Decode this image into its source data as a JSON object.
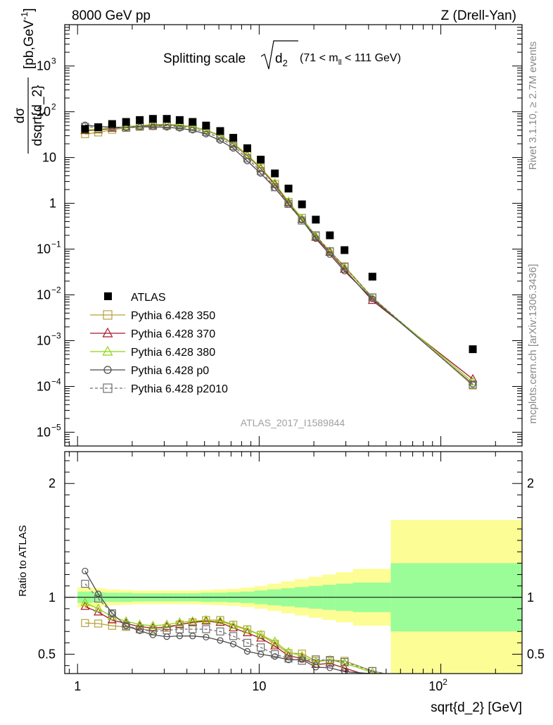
{
  "header": {
    "left": "8000 GeV pp",
    "right": "Z (Drell-Yan)"
  },
  "side_labels": {
    "rivet": "Rivet 3.1.10, ≥ 2.7M events",
    "mcplots": "mcplots.cern.ch [arXiv:1306.3436]"
  },
  "watermark": "ATLAS_2017_I1589844",
  "chart_data": {
    "type": "scatter",
    "title": {
      "prefix": "Splitting scale",
      "var": "d",
      "var_sub": "2",
      "cut_open": "(71 < m",
      "cut_sub": "ll",
      "cut_close": " < 111 GeV)"
    },
    "xlabel": "sqrt{d_2} [GeV]",
    "ylabel": {
      "numer": "dσ",
      "denom": "dsqrt{d_2}",
      "unit_open": "[pb,GeV",
      "unit_exp": "-1",
      "unit_close": "]"
    },
    "ratio_ylabel": "Ratio to ATLAS",
    "x_scale": "log",
    "xlim": [
      0.85,
      280
    ],
    "upper": {
      "y_scale": "log",
      "ylim": [
        5e-06,
        8000
      ],
      "y_ticks": [
        {
          "v": 1e-05,
          "base": "10",
          "exp": "−5"
        },
        {
          "v": 0.0001,
          "base": "10",
          "exp": "−4"
        },
        {
          "v": 0.001,
          "base": "10",
          "exp": "−3"
        },
        {
          "v": 0.01,
          "base": "10",
          "exp": "−2"
        },
        {
          "v": 0.1,
          "base": "10",
          "exp": "−1"
        },
        {
          "v": 1,
          "base": "1",
          "exp": ""
        },
        {
          "v": 10,
          "base": "10",
          "exp": ""
        },
        {
          "v": 100,
          "base": "10",
          "exp": "2"
        },
        {
          "v": 1000,
          "base": "10",
          "exp": "3"
        }
      ]
    },
    "lower": {
      "y_scale": "linear",
      "ylim": [
        0.33,
        2.28
      ],
      "y_ticks": [
        {
          "v": 0.5,
          "label": "0.5"
        },
        {
          "v": 1,
          "label": "1"
        },
        {
          "v": 2,
          "label": "2"
        }
      ]
    },
    "x_ticks": [
      {
        "v": 1,
        "base": "1",
        "exp": ""
      },
      {
        "v": 10,
        "base": "10",
        "exp": ""
      },
      {
        "v": 100,
        "base": "10",
        "exp": "2"
      }
    ],
    "legend_position": "bottom-left",
    "x": [
      1.1,
      1.3,
      1.55,
      1.85,
      2.2,
      2.6,
      3.1,
      3.65,
      4.3,
      5.1,
      6.1,
      7.2,
      8.6,
      10.2,
      12.2,
      14.5,
      17.2,
      20.5,
      24.5,
      29.5,
      42,
      150
    ],
    "x_edges": [
      1.0,
      1.2,
      1.42,
      1.7,
      2.0,
      2.4,
      2.85,
      3.38,
      4.0,
      4.75,
      5.6,
      6.65,
      7.9,
      9.4,
      11.1,
      13.2,
      15.7,
      18.7,
      22.3,
      26.5,
      32.8,
      53,
      280
    ],
    "atlas": {
      "name": "ATLAS",
      "color": "#000000",
      "values": [
        42,
        46,
        54,
        60,
        66,
        70,
        70,
        66,
        60,
        50,
        38,
        27,
        16,
        9,
        4.5,
        2.1,
        0.95,
        0.44,
        0.2,
        0.095,
        0.025,
        0.00065
      ],
      "ratio_band_green": [
        0.05,
        0.045,
        0.04,
        0.04,
        0.035,
        0.035,
        0.035,
        0.035,
        0.035,
        0.04,
        0.04,
        0.045,
        0.05,
        0.06,
        0.07,
        0.08,
        0.09,
        0.1,
        0.11,
        0.12,
        0.13,
        0.3
      ],
      "ratio_band_yellow": [
        0.09,
        0.08,
        0.07,
        0.065,
        0.06,
        0.06,
        0.06,
        0.06,
        0.06,
        0.065,
        0.07,
        0.075,
        0.085,
        0.1,
        0.12,
        0.14,
        0.16,
        0.18,
        0.2,
        0.22,
        0.25,
        0.68
      ]
    },
    "series": [
      {
        "name": "Pythia 6.428 350",
        "color": "#b5a23b",
        "marker": "square-open",
        "dash": false,
        "values": [
          32.5,
          35.4,
          40.5,
          44.4,
          47.5,
          49.7,
          51.1,
          50.2,
          46.8,
          40.0,
          30.4,
          20.5,
          11.5,
          6.03,
          2.66,
          1.07,
          0.48,
          0.194,
          0.09,
          0.042,
          0.0088,
          0.000105
        ]
      },
      {
        "name": "Pythia 6.428 370",
        "color": "#a6182a",
        "marker": "triangle-open",
        "dash": false,
        "values": [
          38.6,
          40.0,
          43.2,
          46.2,
          49.0,
          51.1,
          51.8,
          50.2,
          46.8,
          39.5,
          29.6,
          19.7,
          11.0,
          5.76,
          2.57,
          1.02,
          0.44,
          0.18,
          0.084,
          0.036,
          0.0075,
          0.000145
        ]
      },
      {
        "name": "Pythia 6.428 380",
        "color": "#8dd40f",
        "marker": "triangle-open",
        "dash": false,
        "values": [
          40.0,
          41.4,
          44.8,
          47.4,
          50.2,
          52.5,
          53.2,
          51.5,
          47.4,
          40.0,
          30.1,
          20.3,
          11.4,
          6.03,
          2.75,
          1.09,
          0.46,
          0.19,
          0.09,
          0.04,
          0.0085,
          0.000125
        ]
      },
      {
        "name": "Pythia 6.428 p0",
        "color": "#4a4a4a",
        "marker": "circle-open",
        "dash": false,
        "values": [
          51.7,
          47.4,
          46.4,
          45.0,
          46.6,
          46.9,
          45.8,
          43.6,
          39.6,
          32.5,
          23.6,
          15.9,
          8.4,
          4.5,
          2.16,
          0.945,
          0.43,
          0.17,
          0.076,
          0.033,
          0.0082,
          0.000112
        ]
      },
      {
        "name": "Pythia 6.428 p2010",
        "color": "#6e6e6e",
        "marker": "square-open",
        "dash": true,
        "values": [
          47.0,
          45.5,
          46.4,
          45.0,
          47.5,
          49.0,
          49.7,
          47.5,
          43.2,
          36.0,
          26.6,
          17.8,
          9.6,
          5.04,
          2.25,
          0.97,
          0.42,
          0.2,
          0.089,
          0.041,
          0.0088,
          0.00011
        ]
      }
    ]
  }
}
